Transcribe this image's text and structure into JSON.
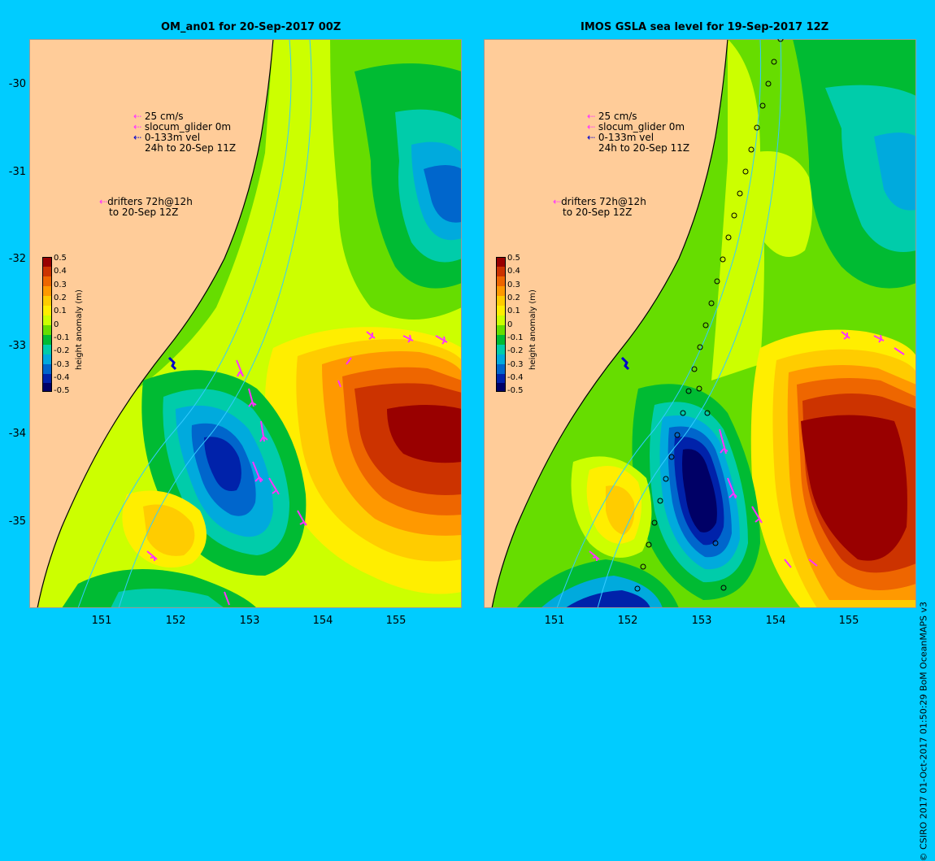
{
  "left_panel": {
    "title": "OM_an01 for 20-Sep-2017 00Z",
    "y_ticks": [
      "-30",
      "-31",
      "-32",
      "-33",
      "-34",
      "-35"
    ],
    "x_ticks": [
      "151",
      "152",
      "153",
      "154",
      "155"
    ]
  },
  "right_panel": {
    "title": "IMOS GSLA sea level  for 19-Sep-2017 12Z",
    "y_ticks": [],
    "x_ticks": [
      "151",
      "152",
      "153",
      "154",
      "155"
    ]
  },
  "legend": {
    "scale_label": "25 cm/s",
    "glider_label": "slocum_glider 0m",
    "vel_label": "0-133m vel",
    "time_label": "24h to 20-Sep 11Z",
    "drifter_label_1": "drifters 72h@12h",
    "drifter_label_2": "to 20-Sep 12Z"
  },
  "colorbar": {
    "title": "height anomaly (m)",
    "ticks": [
      "0.5",
      "0.4",
      "0.3",
      "0.2",
      "0.1",
      "0",
      "-0.1",
      "-0.2",
      "-0.3",
      "-0.4",
      "-0.5"
    ],
    "colors": [
      "#990000",
      "#cc3300",
      "#ee6600",
      "#ff9900",
      "#ffcc00",
      "#ffee00",
      "#ccff00",
      "#66dd00",
      "#00bb33",
      "#00ccaa",
      "#00aadd",
      "#0066cc",
      "#0022aa",
      "#000066"
    ]
  },
  "credit": "© CSIRO 2017  01-Oct-2017 01:50:29 BoM OceanMAPS v3",
  "map_colors": {
    "land": "#ffcc99",
    "ocean_base": "#66dd00",
    "vector_magenta": "#ff33ff",
    "glider_blue": "#0000cc"
  }
}
